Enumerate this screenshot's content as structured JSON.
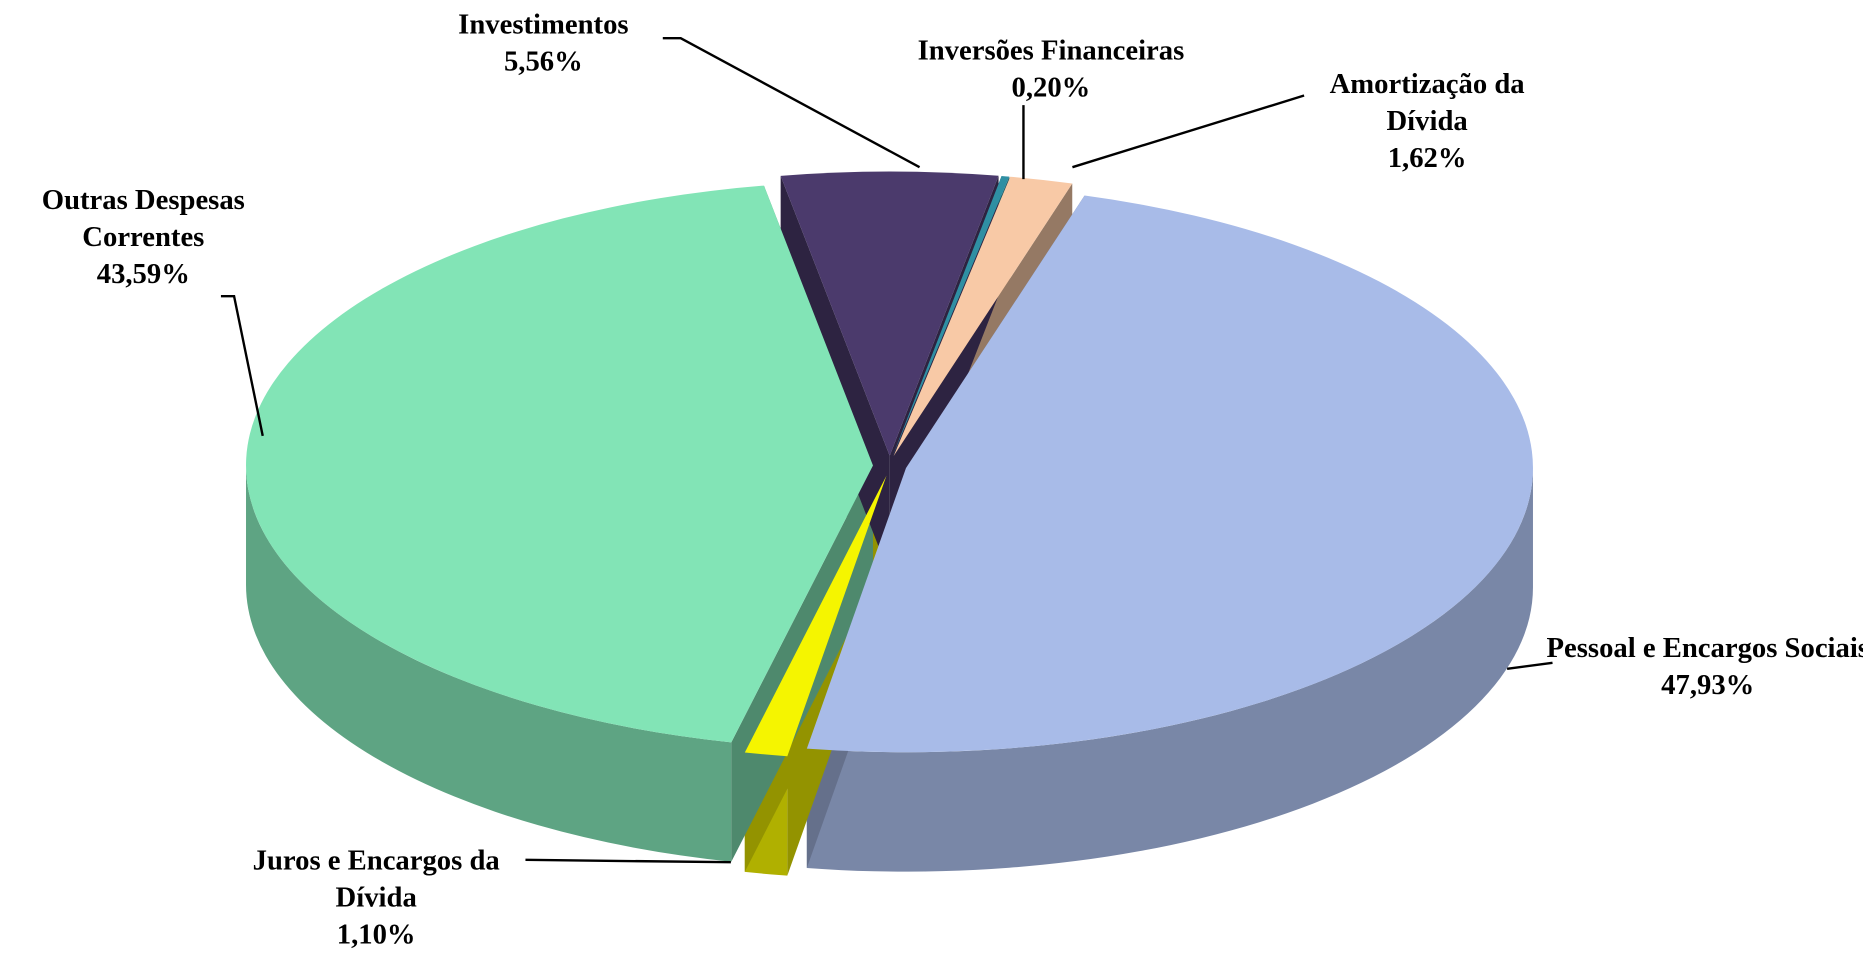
{
  "chart_data": {
    "type": "pie3d",
    "categories": [
      "Inversões Financeiras",
      "Amortização da Dívida",
      "Pessoal e Encargos Sociais",
      "Juros e Encargos da Dívida",
      "Outras Despesas Correntes",
      "Investimentos"
    ],
    "values": [
      0.2,
      1.62,
      47.93,
      1.1,
      43.59,
      5.56
    ],
    "value_labels": [
      "0,20%",
      "1,62%",
      "47,93%",
      "1,10%",
      "43,59%",
      "5,56%"
    ],
    "colors": [
      "#2f8fa3",
      "#f8c9a6",
      "#a8bbe8",
      "#f5f500",
      "#82e4b6",
      "#4b3a6c"
    ]
  }
}
